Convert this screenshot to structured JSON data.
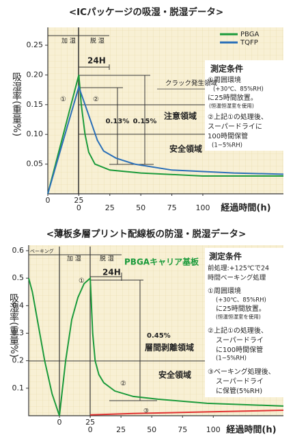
{
  "chart_data": [
    {
      "type": "line",
      "title": "<ICパッケージの吸湿・脱湿データ>",
      "y_label": "吸湿率(重量%)",
      "x_label": "経過時間(h)",
      "xlim": [
        0,
        190
      ],
      "ylim": [
        0,
        0.28
      ],
      "xticks_absorb": [
        0,
        25
      ],
      "xticks_desorb": [
        0,
        25,
        50,
        75,
        100
      ],
      "yticks": [
        0.05,
        {
          "value": 0.1,
          "label": "0.10"
        },
        0.15,
        {
          "value": 0.2,
          "label": "0.20"
        },
        0.25
      ],
      "series": [
        {
          "name": "PBGA",
          "color": "#1a9a3a",
          "x": [
            0,
            25,
            27,
            30,
            33,
            38,
            50,
            75,
            125,
            190
          ],
          "values": [
            0,
            0.2,
            0.15,
            0.1,
            0.07,
            0.05,
            0.04,
            0.035,
            0.03,
            0.03
          ]
        },
        {
          "name": "TQFP",
          "color": "#2a6fb8",
          "x": [
            0,
            25,
            30,
            35,
            40,
            45,
            55,
            70,
            100,
            150,
            190
          ],
          "values": [
            0,
            0.18,
            0.15,
            0.12,
            0.09,
            0.072,
            0.06,
            0.05,
            0.04,
            0.035,
            0.033
          ]
        }
      ],
      "annotations": [
        "加 湿",
        "脱 湿",
        "24H",
        "クラック発生領域",
        "注意領域",
        "安全領域",
        "①",
        "②",
        "0.13%",
        "0.15%",
        "測定条件",
        "①周囲環境",
        "(+30℃、85%RH)",
        "に25時間放置。",
        "(恒温恒湿室を使用)",
        "②上記①の処理後、",
        "スーパードライに",
        "100時間保管",
        "(1~5%RH)"
      ]
    },
    {
      "type": "line",
      "title": "<薄板多層プリント配線板の防湿・脱湿データ>",
      "y_label": "吸湿率(重量%)",
      "x_label": "経過時間(h)",
      "xlim": [
        -25,
        182
      ],
      "ylim": [
        0,
        0.62
      ],
      "xticks_absorb": [
        0,
        25
      ],
      "xticks_desorb": [
        0,
        25,
        50,
        75,
        100
      ],
      "yticks": [
        0.1,
        0.2,
        0.3,
        0.4,
        0.5,
        0.6
      ],
      "series": [
        {
          "color": "#1a9a3a",
          "x": [
            -25,
            -22,
            -18,
            -12,
            -6,
            0,
            5,
            10,
            15,
            20,
            25,
            27,
            29,
            32,
            36,
            45,
            60,
            80,
            120,
            182
          ],
          "values": [
            0.5,
            0.45,
            0.35,
            0.2,
            0.08,
            0,
            0.2,
            0.35,
            0.43,
            0.48,
            0.5,
            0.3,
            0.2,
            0.15,
            0.12,
            0.09,
            0.07,
            0.06,
            0.045,
            0.035
          ]
        },
        {
          "color": "#e03030",
          "x": [
            25,
            60,
            120,
            182
          ],
          "values": [
            0.003,
            0.008,
            0.014,
            0.02
          ]
        }
      ],
      "annotations": [
        "ベーキング",
        "加 湿",
        "脱 湿",
        "PBGAキャリア基板",
        "24H",
        "0.45%",
        "層間剥離領域",
        "安全領域",
        "①",
        "②",
        "③",
        "測定条件",
        "前処理:+125℃で24",
        "時間ベーキング処理",
        "①周囲環境",
        "(+30℃、85%RH)",
        "に25時間放置。",
        "(恒温恒湿室を使用)",
        "②上記①の処理後、",
        "スーパードライ",
        "に100時間保管",
        "(1~5%RH)",
        "③ベーキング処理後、",
        "スーパードライ",
        "に保管(5%RH)"
      ]
    }
  ]
}
